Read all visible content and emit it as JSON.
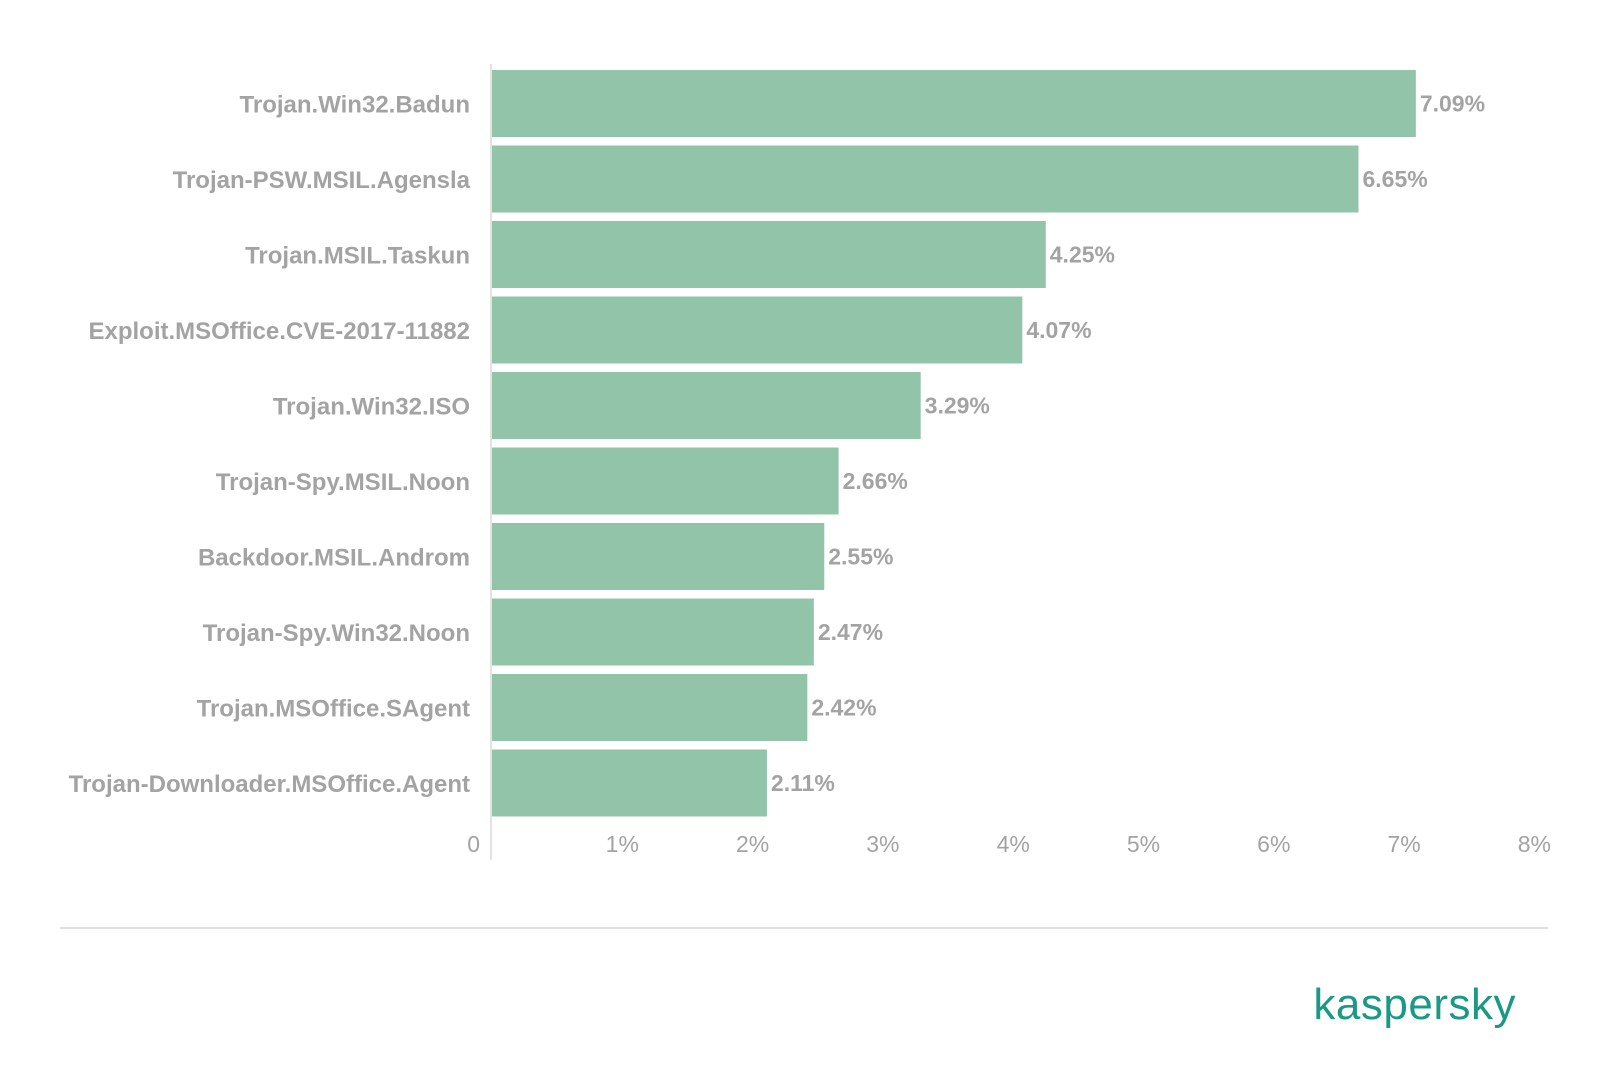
{
  "chart_data": {
    "type": "bar",
    "orientation": "horizontal",
    "categories": [
      "Trojan.Win32.Badun",
      "Trojan-PSW.MSIL.Agensla",
      "Trojan.MSIL.Taskun",
      "Exploit.MSOffice.CVE-2017-11882",
      "Trojan.Win32.ISO",
      "Trojan-Spy.MSIL.Noon",
      "Backdoor.MSIL.Androm",
      "Trojan-Spy.Win32.Noon",
      "Trojan.MSOffice.SAgent",
      "Trojan-Downloader.MSOffice.Agent"
    ],
    "values": [
      7.09,
      6.65,
      4.25,
      4.07,
      3.29,
      2.66,
      2.55,
      2.47,
      2.42,
      2.11
    ],
    "value_labels": [
      "7.09%",
      "6.65%",
      "4.25%",
      "4.07%",
      "3.29%",
      "2.66%",
      "2.55%",
      "2.47%",
      "2.42%",
      "2.11%"
    ],
    "xlim": [
      0,
      8
    ],
    "x_ticks": [
      0,
      1,
      2,
      3,
      4,
      5,
      6,
      7,
      8
    ],
    "x_tick_labels": [
      "0",
      "1%",
      "2%",
      "3%",
      "4%",
      "5%",
      "6%",
      "7%",
      "8%"
    ],
    "title": "",
    "xlabel": "",
    "ylabel": "",
    "grid": false,
    "legend": "none",
    "bar_color": "#91c4a8",
    "text_color": "#a3a3a3"
  },
  "brand": {
    "name": "kaspersky",
    "color": "#1a9a85"
  }
}
